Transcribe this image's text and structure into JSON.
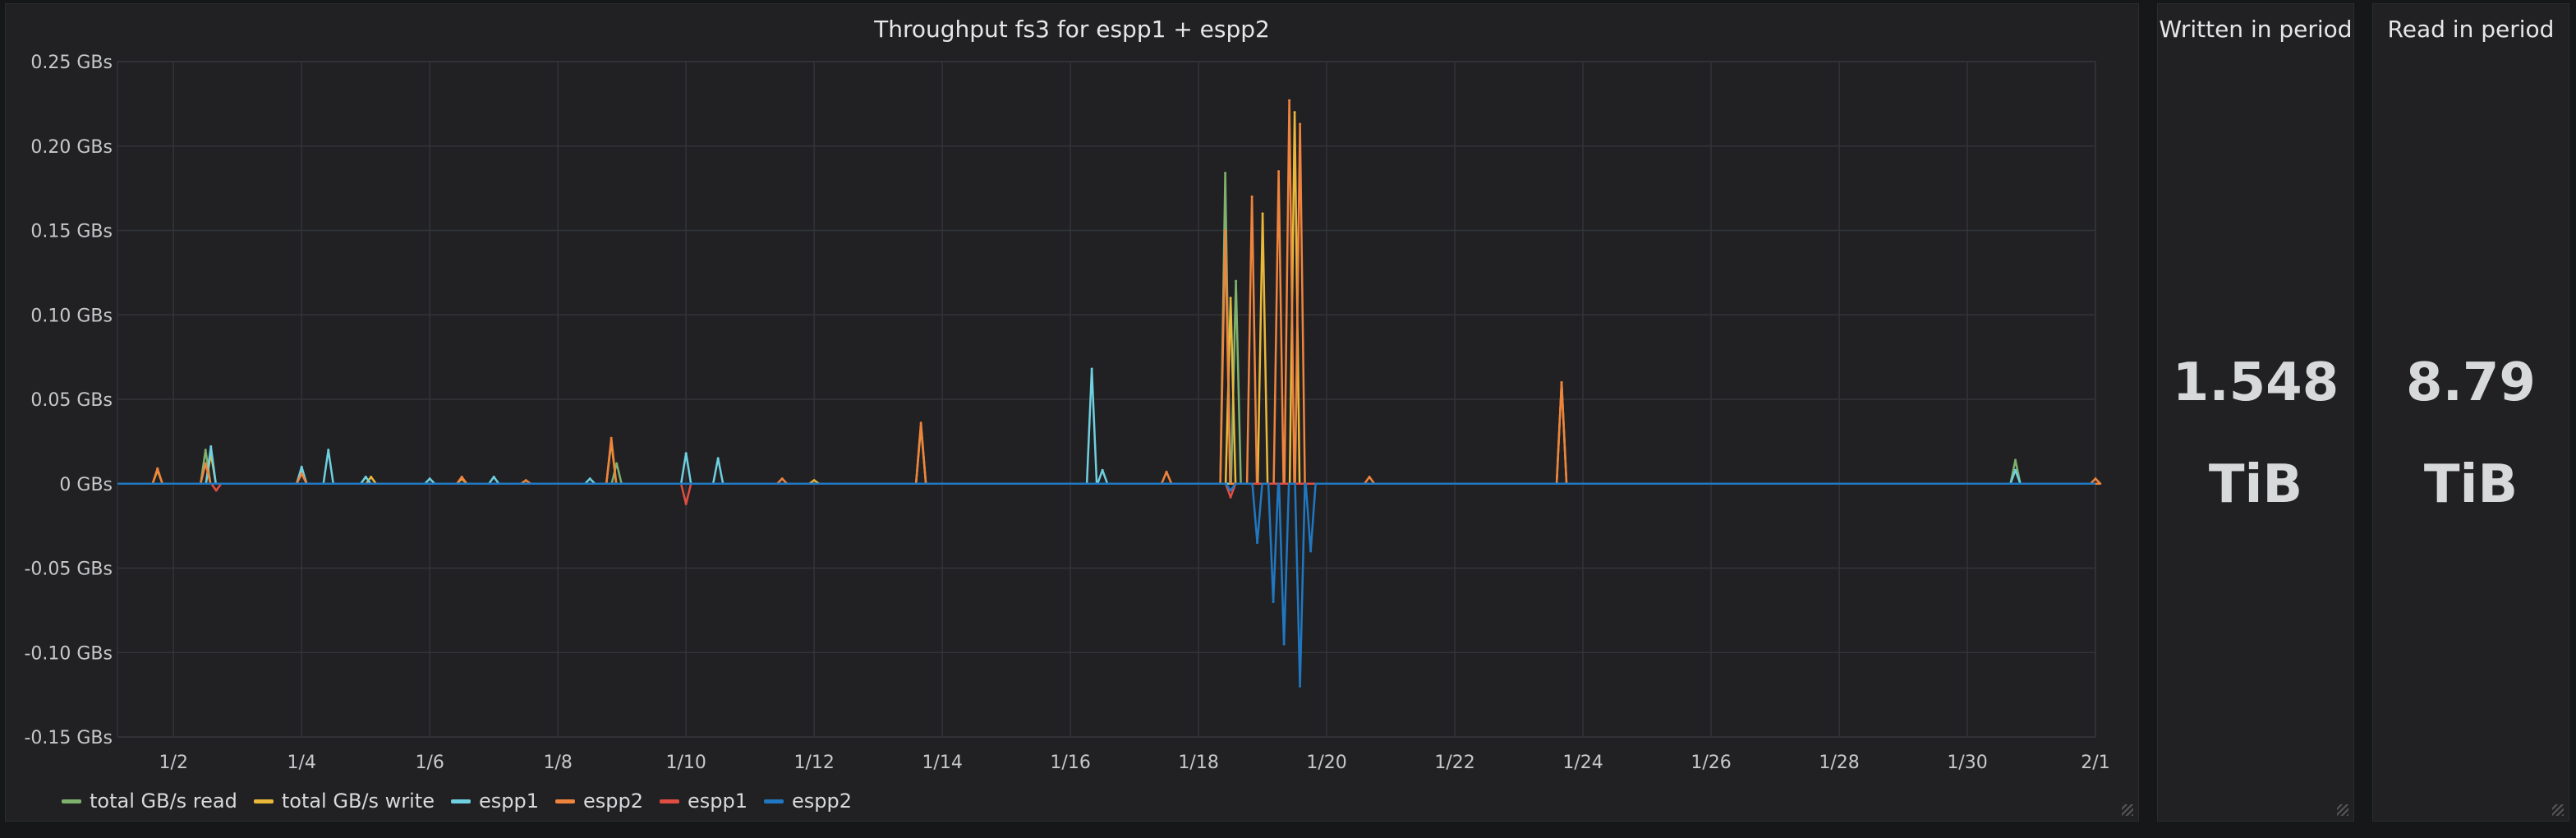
{
  "graph_panel": {
    "title": "Throughput fs3 for espp1 + espp2"
  },
  "legend": [
    {
      "label": "total GB/s read",
      "color": "#7eb26d"
    },
    {
      "label": "total GB/s write",
      "color": "#eab839"
    },
    {
      "label": "espp1",
      "color": "#6ed0e0"
    },
    {
      "label": "espp2",
      "color": "#ef843c"
    },
    {
      "label": "espp1",
      "color": "#e24d42"
    },
    {
      "label": "espp2",
      "color": "#1f78c1"
    }
  ],
  "chart_data": {
    "type": "line",
    "title": "Throughput fs3 for espp1 + espp2",
    "ylabel": "",
    "xlabel": "",
    "ylim": [
      -0.15,
      0.25
    ],
    "xlim": [
      "1/1 03:00",
      "2/1 00:00"
    ],
    "y_ticks": [
      "0.25 GBs",
      "0.20 GBs",
      "0.15 GBs",
      "0.10 GBs",
      "0.05 GBs",
      "0 GBs",
      "-0.05 GBs",
      "-0.10 GBs",
      "-0.15 GBs"
    ],
    "y_tick_values": [
      0.25,
      0.2,
      0.15,
      0.1,
      0.05,
      0,
      -0.05,
      -0.1,
      -0.15
    ],
    "x_ticks": [
      "1/2",
      "1/4",
      "1/6",
      "1/8",
      "1/10",
      "1/12",
      "1/14",
      "1/16",
      "1/18",
      "1/20",
      "1/22",
      "1/24",
      "1/26",
      "1/28",
      "1/30",
      "2/1"
    ],
    "grid": true,
    "legend_position": "bottom-left",
    "series": [
      {
        "name": "total GB/s read",
        "color": "#7eb26d",
        "points": [
          [
            "1/2 12:00",
            0.02
          ],
          [
            "1/4 00:00",
            0.008
          ],
          [
            "1/5 00:00",
            0.004
          ],
          [
            "1/8 22:00",
            0.012
          ],
          [
            "1/18 10:00",
            0.184
          ],
          [
            "1/18 14:00",
            0.12
          ],
          [
            "1/30 18:00",
            0.014
          ]
        ]
      },
      {
        "name": "total GB/s write",
        "color": "#eab839",
        "points": [
          [
            "1/1 18:00",
            0.008
          ],
          [
            "1/2 14:00",
            0.018
          ],
          [
            "1/4 00:00",
            0.009
          ],
          [
            "1/5 02:00",
            0.004
          ],
          [
            "1/6 12:00",
            0.003
          ],
          [
            "1/8 20:00",
            0.025
          ],
          [
            "1/12 00:00",
            0.002
          ],
          [
            "1/13 16:00",
            0.034
          ],
          [
            "1/18 12:00",
            0.11
          ],
          [
            "1/19 00:00",
            0.16
          ],
          [
            "1/19 12:00",
            0.22
          ],
          [
            "1/23 16:00",
            0.06
          ]
        ]
      },
      {
        "name": "espp1",
        "color": "#6ed0e0",
        "points": [
          [
            "1/2 14:00",
            0.022
          ],
          [
            "1/4 00:00",
            0.01
          ],
          [
            "1/4 10:00",
            0.02
          ],
          [
            "1/5 00:00",
            0.004
          ],
          [
            "1/6 00:00",
            0.003
          ],
          [
            "1/7 00:00",
            0.004
          ],
          [
            "1/8 12:00",
            0.003
          ],
          [
            "1/10 00:00",
            0.018
          ],
          [
            "1/10 12:00",
            0.015
          ],
          [
            "1/16 08:00",
            0.068
          ],
          [
            "1/16 12:00",
            0.008
          ],
          [
            "1/30 18:00",
            0.008
          ]
        ]
      },
      {
        "name": "espp2",
        "color": "#ef843c",
        "points": [
          [
            "1/1 18:00",
            0.009
          ],
          [
            "1/2 12:00",
            0.012
          ],
          [
            "1/4 00:00",
            0.006
          ],
          [
            "1/6 12:00",
            0.004
          ],
          [
            "1/7 12:00",
            0.002
          ],
          [
            "1/8 20:00",
            0.027
          ],
          [
            "1/11 12:00",
            0.003
          ],
          [
            "1/13 16:00",
            0.036
          ],
          [
            "1/17 12:00",
            0.007
          ],
          [
            "1/18 10:00",
            0.15
          ],
          [
            "1/18 20:00",
            0.17
          ],
          [
            "1/19 06:00",
            0.185
          ],
          [
            "1/19 10:00",
            0.227
          ],
          [
            "1/19 14:00",
            0.213
          ],
          [
            "1/20 16:00",
            0.004
          ],
          [
            "1/23 16:00",
            0.06
          ],
          [
            "2/1 00:00",
            0.003
          ]
        ]
      },
      {
        "name": "espp1",
        "color": "#e24d42",
        "points": [
          [
            "1/2 16:00",
            -0.004
          ],
          [
            "1/10 00:00",
            -0.012
          ],
          [
            "1/18 12:00",
            -0.008
          ]
        ]
      },
      {
        "name": "espp2",
        "color": "#1f78c1",
        "points": [
          [
            "1/18 12:00",
            -0.004
          ],
          [
            "1/18 22:00",
            -0.035
          ],
          [
            "1/19 04:00",
            -0.07
          ],
          [
            "1/19 08:00",
            -0.095
          ],
          [
            "1/19 14:00",
            -0.12
          ],
          [
            "1/19 18:00",
            -0.04
          ]
        ]
      }
    ]
  },
  "written_panel": {
    "title": "Written in period",
    "value": "1.548",
    "unit": "TiB"
  },
  "read_panel": {
    "title": "Read in period",
    "value": "8.79",
    "unit": "TiB"
  }
}
